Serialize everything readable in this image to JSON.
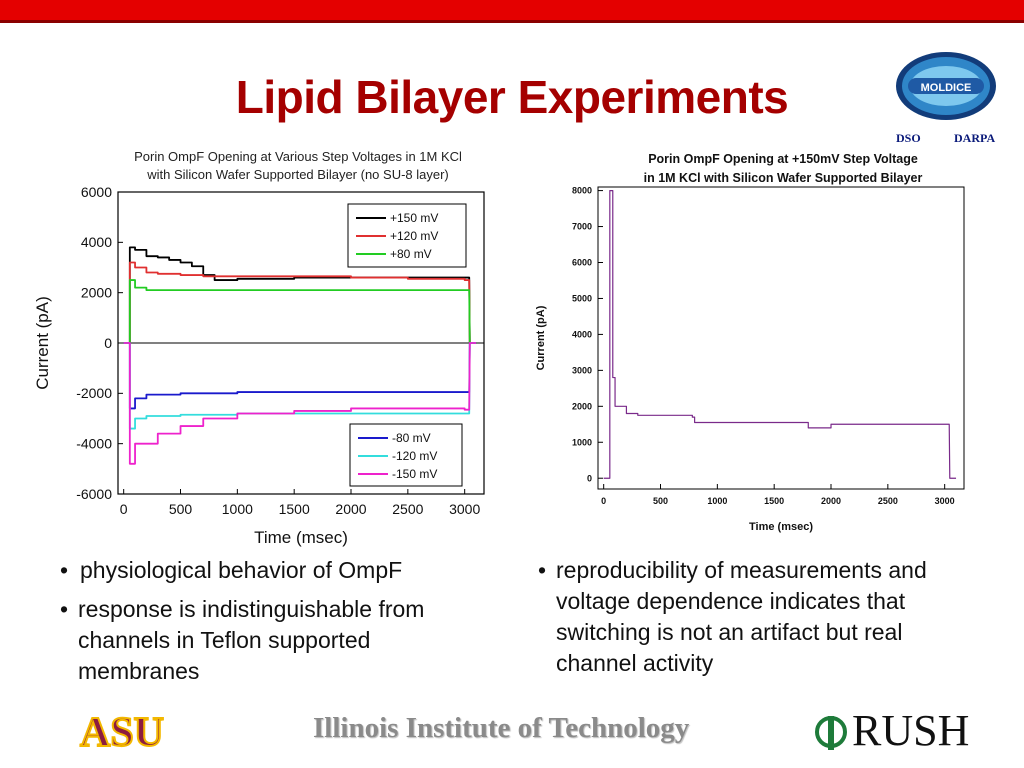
{
  "slide": {
    "title": "Lipid Bilayer Experiments",
    "logo": {
      "label": "MOLDICE",
      "sub_left": "DSO",
      "sub_right": "DARPA"
    }
  },
  "chart_data": [
    {
      "type": "line",
      "title": "Porin OmpF Opening at Various Step Voltages in 1M KCl with Silicon Wafer Supported Bilayer (no SU-8 layer)",
      "title_lines": [
        "Porin OmpF Opening at Various Step Voltages in 1M KCl",
        "with Silicon Wafer Supported Bilayer (no SU-8 layer)"
      ],
      "xlabel": "Time (msec)",
      "ylabel": "Current (pA)",
      "xlim": [
        -50,
        3170
      ],
      "ylim": [
        -6000,
        6000
      ],
      "xticks": [
        0,
        500,
        1000,
        1500,
        2000,
        2500,
        3000
      ],
      "yticks": [
        6000,
        4000,
        2000,
        0,
        -2000,
        -4000,
        -6000
      ],
      "legends": [
        {
          "position": "top-right",
          "entries": [
            "+150 mV",
            "+120 mV",
            "+80 mV"
          ]
        },
        {
          "position": "bottom-right",
          "entries": [
            "-80 mV",
            "-120 mV",
            "-150 mV"
          ]
        }
      ],
      "series": [
        {
          "name": "+150 mV",
          "color": "#000000",
          "x": [
            60,
            100,
            200,
            300,
            400,
            500,
            600,
            700,
            800,
            1000,
            1500,
            2000,
            2500,
            3000
          ],
          "y": [
            3800,
            3700,
            3450,
            3400,
            3300,
            3200,
            3050,
            2700,
            2500,
            2550,
            2600,
            2600,
            2600,
            2600
          ]
        },
        {
          "name": "+120 mV",
          "color": "#e03030",
          "x": [
            60,
            100,
            200,
            300,
            500,
            700,
            1000,
            1500,
            2000,
            2500,
            3000
          ],
          "y": [
            3200,
            3000,
            2800,
            2750,
            2700,
            2650,
            2650,
            2650,
            2600,
            2550,
            2500
          ]
        },
        {
          "name": "+80 mV",
          "color": "#22cc22",
          "x": [
            60,
            100,
            200,
            500,
            1000,
            2000,
            3000
          ],
          "y": [
            2500,
            2200,
            2100,
            2100,
            2100,
            2100,
            2100
          ]
        },
        {
          "name": "-80 mV",
          "color": "#1a1acc",
          "x": [
            60,
            100,
            200,
            500,
            1000,
            2000,
            3000
          ],
          "y": [
            -2600,
            -2200,
            -2050,
            -2000,
            -1950,
            -1950,
            -1950
          ]
        },
        {
          "name": "-120 mV",
          "color": "#33dddd",
          "x": [
            60,
            100,
            200,
            500,
            1000,
            2000,
            3000
          ],
          "y": [
            -3400,
            -3000,
            -2900,
            -2850,
            -2800,
            -2800,
            -2800
          ]
        },
        {
          "name": "-150 mV",
          "color": "#ee22cc",
          "x": [
            60,
            100,
            300,
            500,
            700,
            1000,
            1500,
            2000,
            2500,
            3000
          ],
          "y": [
            -4800,
            -4000,
            -3600,
            -3300,
            -3000,
            -2800,
            -2700,
            -2600,
            -2600,
            -2650
          ]
        }
      ]
    },
    {
      "type": "line",
      "title": "Porin OmpF Opening at +150mV Step Voltage in 1M KCl with Silicon Wafer Supported Bilayer",
      "title_lines": [
        "Porin OmpF Opening at +150mV Step Voltage",
        "in 1M KCl with Silicon Wafer Supported Bilayer"
      ],
      "xlabel": "Time (msec)",
      "ylabel": "Current (pA)",
      "xlim": [
        -50,
        3170
      ],
      "ylim": [
        -300,
        8100
      ],
      "xticks": [
        0,
        500,
        1000,
        1500,
        2000,
        2500,
        3000
      ],
      "yticks": [
        8000,
        7000,
        6000,
        5000,
        4000,
        3000,
        2000,
        1000,
        0
      ],
      "series": [
        {
          "name": "+150 mV",
          "color": "#7a2a8a",
          "x": [
            60,
            80,
            100,
            200,
            300,
            500,
            780,
            800,
            1000,
            1500,
            1800,
            2000,
            2500,
            3000
          ],
          "y": [
            8000,
            2800,
            2000,
            1800,
            1750,
            1750,
            1700,
            1550,
            1550,
            1550,
            1400,
            1500,
            1500,
            1500
          ]
        }
      ]
    }
  ],
  "bullets_left": [
    "physiological behavior of OmpF",
    "response is indistinguishable from channels in Teflon supported membranes"
  ],
  "bullets_right": [
    "reproducibility of measurements and voltage dependence indicates that switching is not an artifact but real channel activity"
  ],
  "footer": {
    "asu": "ASU",
    "iit": "Illinois Institute of Technology",
    "rush": "RUSH"
  },
  "colors": {
    "accent": "#e40000",
    "title": "#a50000"
  }
}
